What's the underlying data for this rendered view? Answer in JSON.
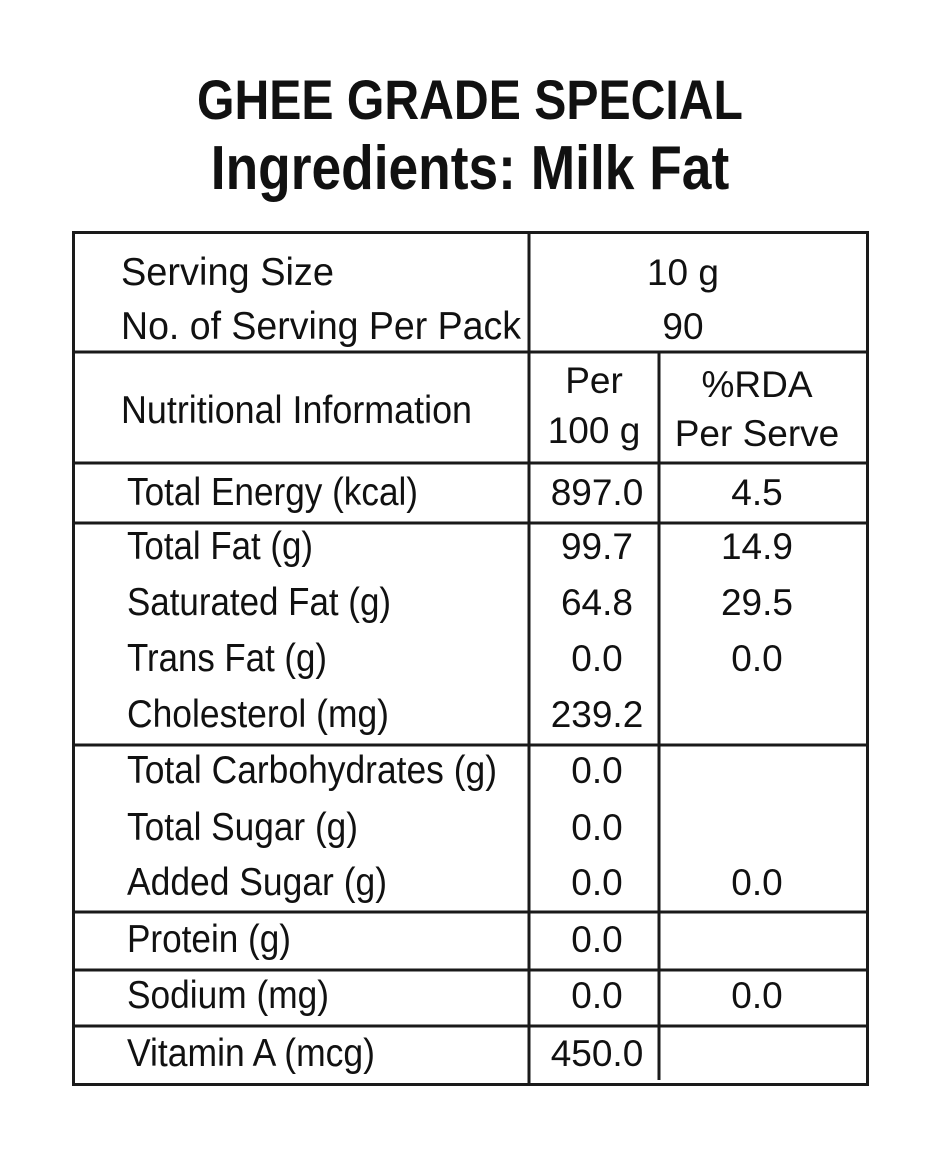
{
  "header": {
    "product_name": "GHEE GRADE SPECIAL",
    "ingredients": "Ingredients: Milk Fat"
  },
  "serving": {
    "size_label": "Serving Size",
    "size_value": "10 g",
    "per_pack_label": "No. of Serving Per Pack",
    "per_pack_value": "90"
  },
  "columns": {
    "nutrition_label": "Nutritional Information",
    "per_line1": "Per",
    "per_line2": "100 g",
    "rda_line1": "%RDA",
    "rda_line2": "Per Serve"
  },
  "rows": [
    {
      "name": "Total Energy (kcal)",
      "per100": "897.0",
      "rda": "4.5"
    },
    {
      "name": "Total Fat (g)",
      "per100": "99.7",
      "rda": "14.9"
    },
    {
      "name": "Saturated Fat (g)",
      "per100": "64.8",
      "rda": "29.5"
    },
    {
      "name": "Trans Fat (g)",
      "per100": "0.0",
      "rda": "0.0"
    },
    {
      "name": "Cholesterol (mg)",
      "per100": "239.2",
      "rda": ""
    },
    {
      "name": "Total Carbohydrates (g)",
      "per100": "0.0",
      "rda": ""
    },
    {
      "name": "Total Sugar (g)",
      "per100": "0.0",
      "rda": ""
    },
    {
      "name": "Added Sugar (g)",
      "per100": "0.0",
      "rda": "0.0"
    },
    {
      "name": "Protein (g)",
      "per100": "0.0",
      "rda": ""
    },
    {
      "name": "Sodium (mg)",
      "per100": "0.0",
      "rda": "0.0"
    },
    {
      "name": "Vitamin A (mcg)",
      "per100": "450.0",
      "rda": ""
    }
  ]
}
